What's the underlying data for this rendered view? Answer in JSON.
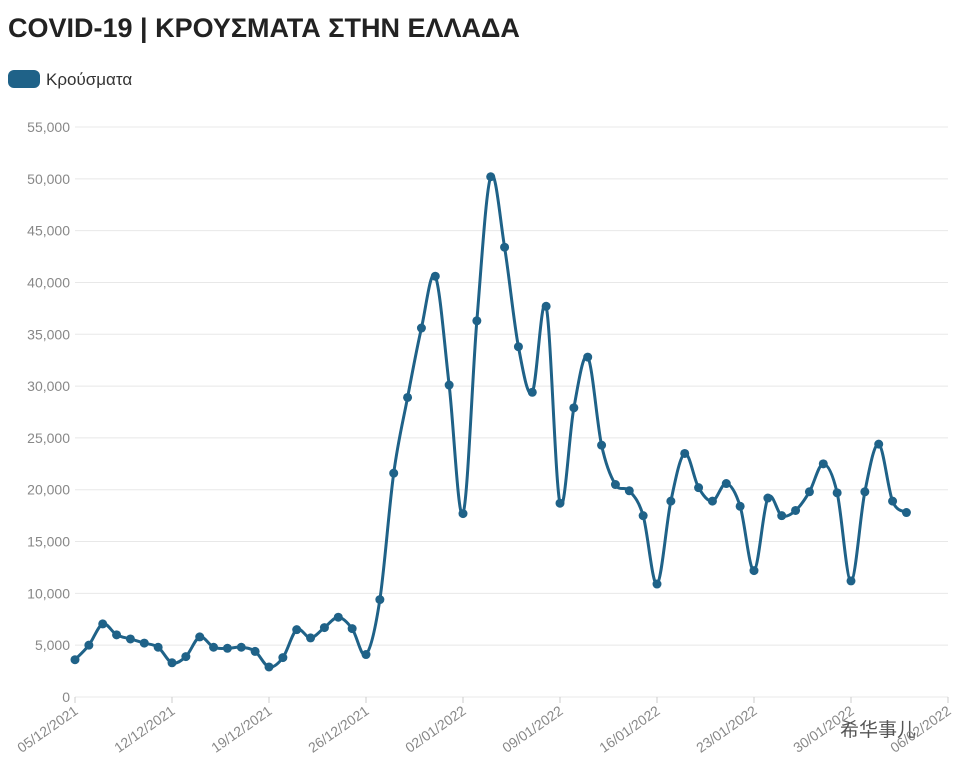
{
  "chart_data": {
    "type": "line",
    "title": "COVID-19 | ΚΡΟΥΣΜΑΤΑ ΣΤΗΝ ΕΛΛΑΔΑ",
    "watermark": "希华事儿",
    "legend": "top-left",
    "grid": true,
    "x": [
      "05/12/2021",
      "06/12/2021",
      "07/12/2021",
      "08/12/2021",
      "09/12/2021",
      "10/12/2021",
      "11/12/2021",
      "12/12/2021",
      "13/12/2021",
      "14/12/2021",
      "15/12/2021",
      "16/12/2021",
      "17/12/2021",
      "18/12/2021",
      "19/12/2021",
      "20/12/2021",
      "21/12/2021",
      "22/12/2021",
      "23/12/2021",
      "24/12/2021",
      "25/12/2021",
      "26/12/2021",
      "27/12/2021",
      "28/12/2021",
      "29/12/2021",
      "30/12/2021",
      "31/12/2021",
      "01/01/2022",
      "02/01/2022",
      "03/01/2022",
      "04/01/2022",
      "05/01/2022",
      "06/01/2022",
      "07/01/2022",
      "08/01/2022",
      "09/01/2022",
      "10/01/2022",
      "11/01/2022",
      "12/01/2022",
      "13/01/2022",
      "14/01/2022",
      "15/01/2022",
      "16/01/2022",
      "17/01/2022",
      "18/01/2022",
      "19/01/2022",
      "20/01/2022",
      "21/01/2022",
      "22/01/2022",
      "23/01/2022",
      "24/01/2022",
      "25/01/2022",
      "26/01/2022",
      "27/01/2022",
      "28/01/2022",
      "29/01/2022",
      "30/01/2022",
      "31/01/2022",
      "01/02/2022",
      "02/02/2022",
      "03/02/2022"
    ],
    "series": [
      {
        "name": "Κρούσματα",
        "color": "#1f6288",
        "values": [
          3600,
          5000,
          7050,
          6000,
          5600,
          5200,
          4800,
          3300,
          3900,
          5800,
          4800,
          4700,
          4800,
          4400,
          2900,
          3800,
          6500,
          5700,
          6700,
          7700,
          6600,
          4100,
          9400,
          21600,
          28900,
          35600,
          40600,
          30100,
          17700,
          36300,
          50200,
          43400,
          33800,
          29400,
          37700,
          18700,
          27900,
          32800,
          24300,
          20500,
          19900,
          17500,
          10900,
          18900,
          23500,
          20200,
          18900,
          20600,
          18400,
          12200,
          19200,
          17500,
          18000,
          19800,
          22500,
          19700,
          11200,
          19800,
          24400,
          18900,
          17800
        ]
      }
    ],
    "xlim": [
      "05/12/2021",
      "06/02/2022"
    ],
    "xticks": [
      "05/12/2021",
      "12/12/2021",
      "19/12/2021",
      "26/12/2021",
      "02/01/2022",
      "09/01/2022",
      "16/01/2022",
      "23/01/2022",
      "30/01/2022",
      "06/02/2022"
    ],
    "ylim": [
      0,
      55000
    ],
    "yticks": [
      0,
      {
        "value": 5000,
        "label": "5,000"
      },
      {
        "value": 10000,
        "label": "10,000"
      },
      {
        "value": 15000,
        "label": "15,000"
      },
      {
        "value": 20000,
        "label": "20,000"
      },
      {
        "value": 25000,
        "label": "25,000"
      },
      {
        "value": 30000,
        "label": "30,000"
      },
      {
        "value": 35000,
        "label": "35,000"
      },
      {
        "value": 40000,
        "label": "40,000"
      },
      {
        "value": 45000,
        "label": "45,000"
      },
      {
        "value": 50000,
        "label": "50,000"
      },
      {
        "value": 55000,
        "label": "55,000"
      }
    ]
  }
}
